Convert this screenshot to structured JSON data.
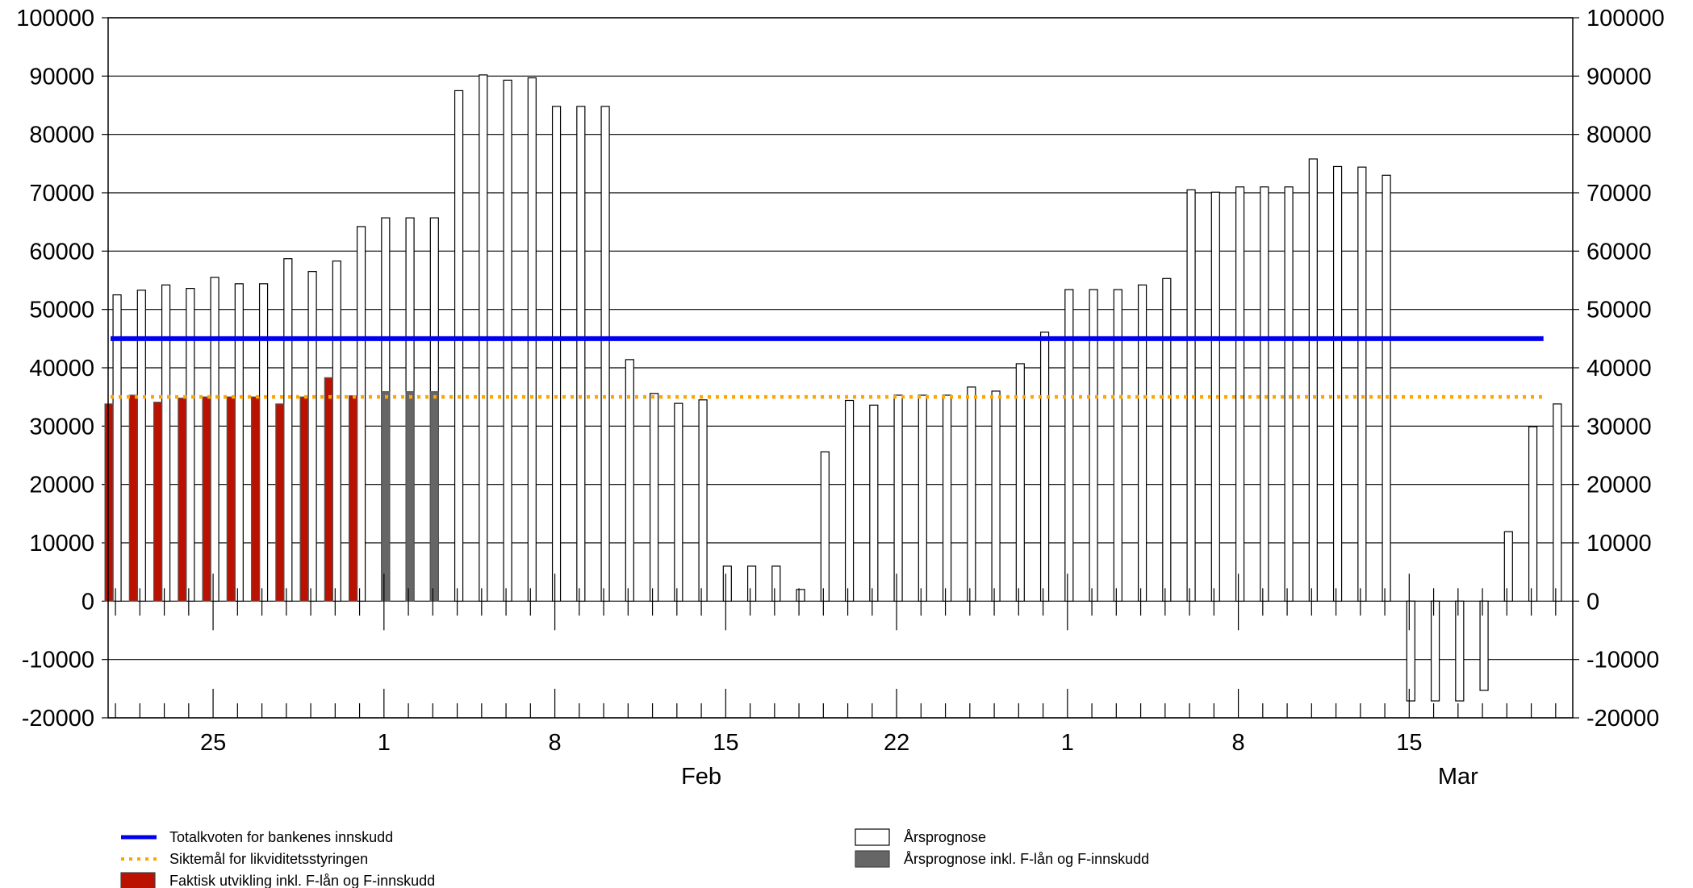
{
  "chart_data": {
    "type": "bar",
    "y_ticks": [
      100000,
      90000,
      80000,
      70000,
      60000,
      50000,
      40000,
      30000,
      20000,
      10000,
      0,
      -10000,
      -20000
    ],
    "ylim": [
      -20000,
      100000
    ],
    "grid": true,
    "x_date_labels": [
      {
        "day": 18,
        "text": "25"
      },
      {
        "day": 25,
        "text": "1"
      },
      {
        "day": 32,
        "text": "8"
      },
      {
        "day": 39,
        "text": "15"
      },
      {
        "day": 46,
        "text": "22"
      },
      {
        "day": 53,
        "text": "1"
      },
      {
        "day": 60,
        "text": "8"
      },
      {
        "day": 67,
        "text": "15"
      }
    ],
    "month_labels": [
      {
        "day": 38,
        "text": "Feb"
      },
      {
        "day": 69,
        "text": "Mar"
      }
    ],
    "x_range_days": [
      13.7,
      73.7
    ],
    "reference_lines": {
      "totalkvote": {
        "name": "Totalkvoten for bankenes innskudd",
        "value": 45000,
        "color": "#0000ee"
      },
      "siktemal": {
        "name": "Siktemål for likviditetsstyringen",
        "value": 35000,
        "color": "#ffa500"
      }
    },
    "series": [
      {
        "name": "Årsprognose",
        "color": "#ffffff",
        "points": [
          {
            "day": 14,
            "value": 52500
          },
          {
            "day": 15,
            "value": 53300
          },
          {
            "day": 16,
            "value": 54200
          },
          {
            "day": 17,
            "value": 53600
          },
          {
            "day": 18,
            "value": 55500
          },
          {
            "day": 19,
            "value": 54400
          },
          {
            "day": 20,
            "value": 54400
          },
          {
            "day": 21,
            "value": 58700
          },
          {
            "day": 22,
            "value": 56500
          },
          {
            "day": 23,
            "value": 58300
          },
          {
            "day": 24,
            "value": 64200
          },
          {
            "day": 25,
            "value": 65700
          },
          {
            "day": 26,
            "value": 65700
          },
          {
            "day": 27,
            "value": 65700
          },
          {
            "day": 28,
            "value": 87500
          },
          {
            "day": 29,
            "value": 90200
          },
          {
            "day": 30,
            "value": 89300
          },
          {
            "day": 31,
            "value": 89700
          },
          {
            "day": 32,
            "value": 84800
          },
          {
            "day": 33,
            "value": 84800
          },
          {
            "day": 34,
            "value": 84800
          },
          {
            "day": 35,
            "value": 41400
          },
          {
            "day": 36,
            "value": 35600
          },
          {
            "day": 37,
            "value": 33900
          },
          {
            "day": 38,
            "value": 34500
          },
          {
            "day": 39,
            "value": 6000
          },
          {
            "day": 40,
            "value": 6000
          },
          {
            "day": 41,
            "value": 6000
          },
          {
            "day": 42,
            "value": 2000
          },
          {
            "day": 43,
            "value": 25600
          },
          {
            "day": 44,
            "value": 34400
          },
          {
            "day": 45,
            "value": 33600
          },
          {
            "day": 46,
            "value": 35300
          },
          {
            "day": 47,
            "value": 35300
          },
          {
            "day": 48,
            "value": 35300
          },
          {
            "day": 49,
            "value": 36700
          },
          {
            "day": 50,
            "value": 36000
          },
          {
            "day": 51,
            "value": 40700
          },
          {
            "day": 52,
            "value": 46100
          },
          {
            "day": 53,
            "value": 53400
          },
          {
            "day": 54,
            "value": 53400
          },
          {
            "day": 55,
            "value": 53400
          },
          {
            "day": 56,
            "value": 54200
          },
          {
            "day": 57,
            "value": 55300
          },
          {
            "day": 58,
            "value": 70500
          },
          {
            "day": 59,
            "value": 70100
          },
          {
            "day": 60,
            "value": 71000
          },
          {
            "day": 61,
            "value": 71000
          },
          {
            "day": 62,
            "value": 71000
          },
          {
            "day": 63,
            "value": 75800
          },
          {
            "day": 64,
            "value": 74500
          },
          {
            "day": 65,
            "value": 74400
          },
          {
            "day": 66,
            "value": 73000
          },
          {
            "day": 67,
            "value": -17100
          },
          {
            "day": 68,
            "value": -17100
          },
          {
            "day": 69,
            "value": -17100
          },
          {
            "day": 70,
            "value": -15300
          },
          {
            "day": 71,
            "value": 11900
          },
          {
            "day": 72,
            "value": 29900
          },
          {
            "day": 73,
            "value": 33800
          }
        ]
      },
      {
        "name": "Årsprognose inkl. F-lån og F-innskudd",
        "color": "#666666",
        "points": [
          {
            "day": 25,
            "value": 35900
          },
          {
            "day": 26,
            "value": 35900
          },
          {
            "day": 27,
            "value": 35900
          }
        ]
      },
      {
        "name": "Faktisk utvikling inkl. F-lån og F-innskudd",
        "color": "#bb1100",
        "points": [
          {
            "day": 14,
            "value": 33800
          },
          {
            "day": 15,
            "value": 35300
          },
          {
            "day": 16,
            "value": 34100
          },
          {
            "day": 17,
            "value": 34800
          },
          {
            "day": 18,
            "value": 35000
          },
          {
            "day": 19,
            "value": 35000
          },
          {
            "day": 20,
            "value": 35000
          },
          {
            "day": 21,
            "value": 33800
          },
          {
            "day": 22,
            "value": 35000
          },
          {
            "day": 23,
            "value": 38300
          },
          {
            "day": 24,
            "value": 35200
          }
        ]
      }
    ]
  },
  "legend": {
    "left": [
      {
        "label": "Totalkvoten for bankenes innskudd",
        "swatch": "line",
        "color": "#0000ee"
      },
      {
        "label": "Siktemål for likviditetsstyringen",
        "swatch": "dotted",
        "color": "#ffa500"
      },
      {
        "label": "Faktisk utvikling inkl. F-lån og F-innskudd",
        "swatch": "box",
        "color": "#bb1100"
      }
    ],
    "right": [
      {
        "label": "Årsprognose",
        "swatch": "box",
        "color": "#ffffff"
      },
      {
        "label": "Årsprognose inkl. F-lån og F-innskudd",
        "swatch": "box",
        "color": "#666666"
      }
    ]
  }
}
